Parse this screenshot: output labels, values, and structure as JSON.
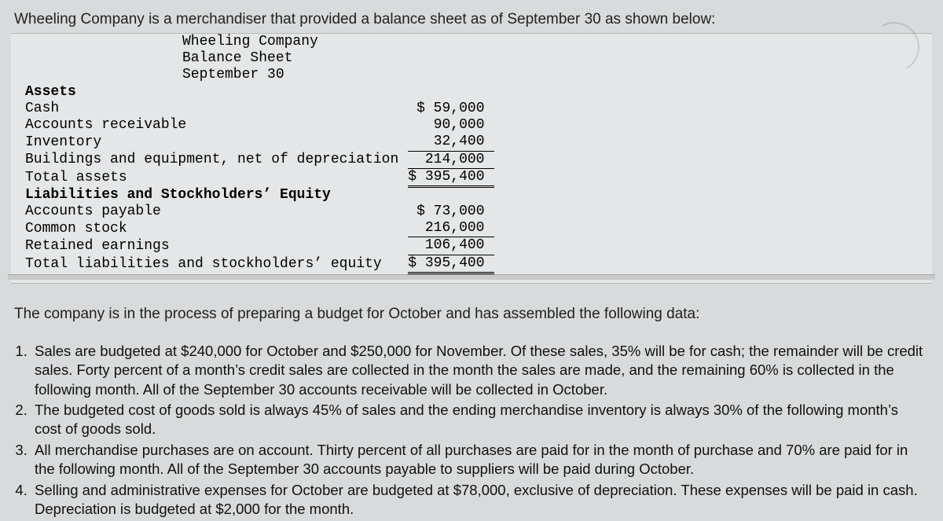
{
  "intro": "Wheeling Company is a merchandiser that provided a balance sheet as of September 30 as shown below:",
  "sheet": {
    "company": "Wheeling Company",
    "title": "Balance Sheet",
    "date": "September 30",
    "assets_header": "Assets",
    "rows_assets": [
      {
        "label": "Cash",
        "amount": "$ 59,000"
      },
      {
        "label": "Accounts receivable",
        "amount": "90,000"
      },
      {
        "label": "Inventory",
        "amount": "32,400"
      },
      {
        "label": "Buildings and equipment, net of depreciation",
        "amount": "214,000"
      }
    ],
    "total_assets_label": "Total assets",
    "total_assets_amount": "$ 395,400",
    "liab_header": "Liabilities and Stockholders’ Equity",
    "rows_liab": [
      {
        "label": "Accounts payable",
        "amount": "$ 73,000"
      },
      {
        "label": "Common stock",
        "amount": "216,000"
      },
      {
        "label": "Retained earnings",
        "amount": "106,400"
      }
    ],
    "total_liab_label": "Total liabilities and stockholders’ equity",
    "total_liab_amount": "$ 395,400"
  },
  "midtext": "The company is in the process of preparing a budget for October and has assembled the following data:",
  "notes": [
    "Sales are budgeted at $240,000 for October and $250,000 for November. Of these sales, 35% will be for cash; the remainder will be credit sales. Forty percent of a month’s credit sales are collected in the month the sales are made, and the remaining 60% is collected in the following month. All of the September 30 accounts receivable will be collected in October.",
    "The budgeted cost of goods sold is always 45% of sales and the ending merchandise inventory is always 30% of the following month’s cost of goods sold.",
    "All merchandise purchases are on account. Thirty percent of all purchases are paid for in the month of purchase and 70% are paid for in the following month. All of the September 30 accounts payable to suppliers will be paid during October.",
    "Selling and administrative expenses for October are budgeted at $78,000, exclusive of depreciation. These expenses will be paid in cash. Depreciation is budgeted at $2,000 for the month."
  ]
}
